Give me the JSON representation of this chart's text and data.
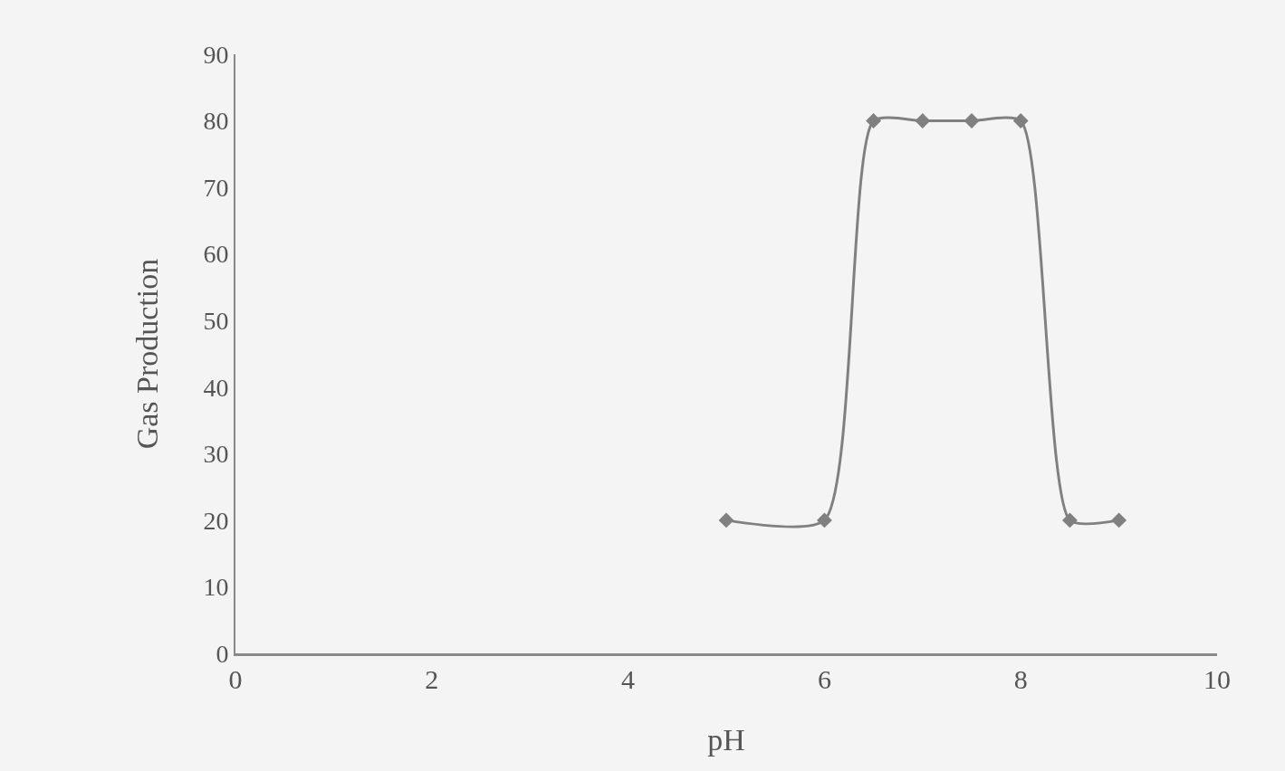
{
  "chart_data": {
    "type": "line",
    "xlabel": "pH",
    "ylabel": "Gas Production",
    "x": [
      5,
      6,
      6.5,
      7,
      7.5,
      8,
      8.5,
      9
    ],
    "series": [
      {
        "color": "#808080",
        "values": [
          20,
          20,
          80,
          80,
          80,
          80,
          20,
          20
        ]
      }
    ],
    "xlim": [
      0,
      10
    ],
    "xticks": [
      0,
      2,
      4,
      6,
      8,
      10
    ],
    "ylim": [
      0,
      90
    ],
    "yticks": [
      0,
      10,
      20,
      30,
      40,
      50,
      60,
      70,
      80,
      90
    ],
    "marker": "diamond",
    "line_style": "solid",
    "grid": false,
    "legend": false
  }
}
